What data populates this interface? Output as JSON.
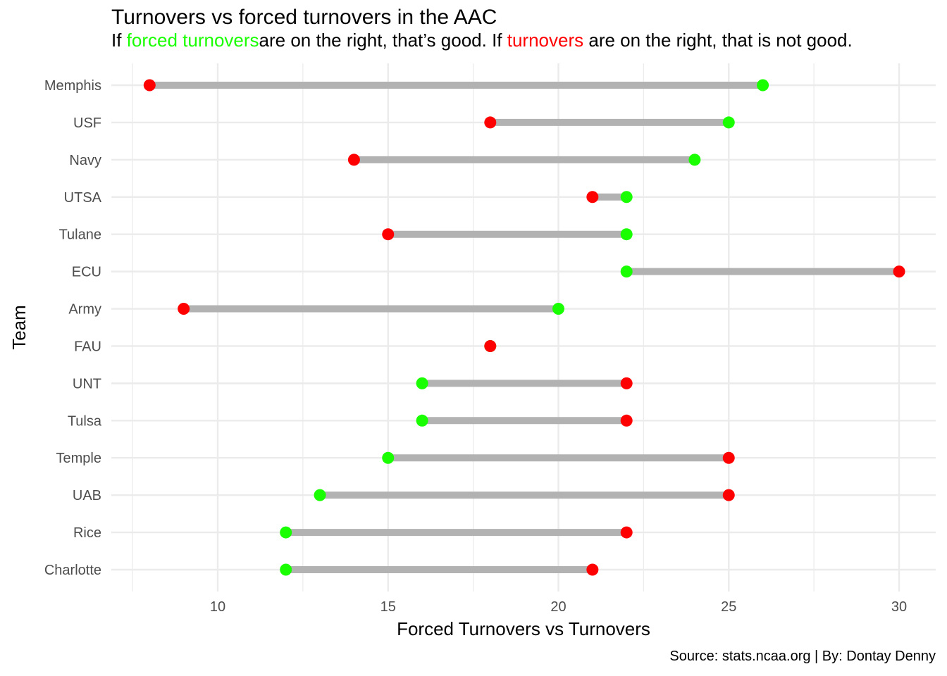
{
  "chart_data": {
    "type": "dumbbell",
    "title": "Turnovers vs forced turnovers in the AAC",
    "subtitle": {
      "prefix": "If ",
      "forced_label": "forced turnovers",
      "middle": "are on the right, that’s good. If ",
      "turnovers_label": "turnovers",
      "suffix": " are on the right, that is not good."
    },
    "caption": "Source: stats.ncaa.org | By: Dontay Denny",
    "xlabel": "Forced Turnovers vs Turnovers",
    "ylabel": "Team",
    "xlim": [
      7.5,
      31.1
    ],
    "xticks": [
      10,
      15,
      20,
      25,
      30
    ],
    "grid": true,
    "colors": {
      "forced_turnovers": "#19FF00",
      "turnovers": "#FF0000",
      "segment": "#B2B2B2",
      "grid": "#EBEBEB"
    },
    "categories": [
      "Memphis",
      "USF",
      "Navy",
      "UTSA",
      "Tulane",
      "ECU",
      "Army",
      "FAU",
      "UNT",
      "Tulsa",
      "Temple",
      "UAB",
      "Rice",
      "Charlotte"
    ],
    "series": [
      {
        "name": "forced turnovers",
        "values": [
          26,
          25,
          24,
          22,
          22,
          22,
          20,
          18,
          16,
          16,
          15,
          13,
          12,
          12
        ]
      },
      {
        "name": "turnovers",
        "values": [
          8,
          18,
          14,
          21,
          15,
          30,
          9,
          18,
          22,
          22,
          25,
          25,
          22,
          21
        ]
      }
    ]
  }
}
